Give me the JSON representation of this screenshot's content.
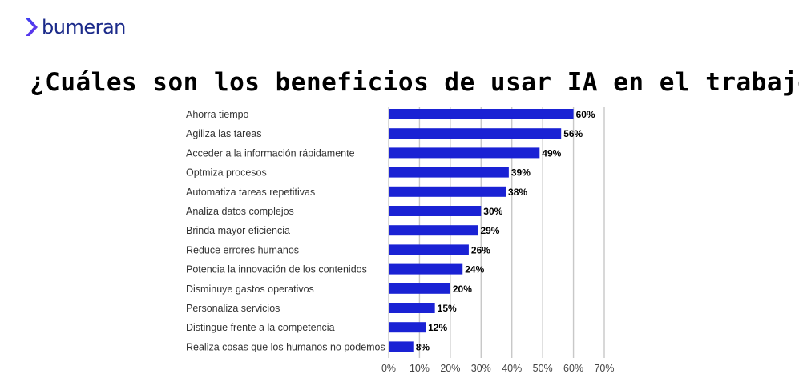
{
  "brand": {
    "name": "bumeran",
    "accent": "#1e2cd8",
    "mark_colors": [
      "#3b3ff2",
      "#6a34e8"
    ]
  },
  "chart_data": {
    "type": "bar",
    "orientation": "horizontal",
    "title": "¿Cuáles son los beneficios de usar IA en el trabajo?",
    "categories": [
      "Ahorra tiempo",
      "Agiliza las tareas",
      "Acceder a la información rápidamente",
      "Optmiza procesos",
      "Automatiza tareas repetitivas",
      "Analiza datos complejos",
      "Brinda mayor eficiencia",
      "Reduce errores humanos",
      "Potencia la innovación de los contenidos",
      "Disminuye gastos operativos",
      "Personaliza servicios",
      "Distingue frente a la competencia",
      "Realiza cosas que los humanos no podemos"
    ],
    "values": [
      60,
      56,
      49,
      39,
      38,
      30,
      29,
      26,
      24,
      20,
      15,
      12,
      8
    ],
    "data_labels": [
      "60%",
      "56%",
      "49%",
      "39%",
      "38%",
      "30%",
      "29%",
      "26%",
      "24%",
      "20%",
      "15%",
      "12%",
      "8%"
    ],
    "xlim": [
      0,
      70
    ],
    "x_ticks": [
      0,
      10,
      20,
      30,
      40,
      50,
      60,
      70
    ],
    "x_tick_labels": [
      "0%",
      "10%",
      "20%",
      "30%",
      "40%",
      "50%",
      "60%",
      "70%"
    ],
    "xlabel": "",
    "ylabel": "",
    "grid": "vertical",
    "bar_color": "#1a22d4",
    "grid_color": "#c8c8c8"
  }
}
